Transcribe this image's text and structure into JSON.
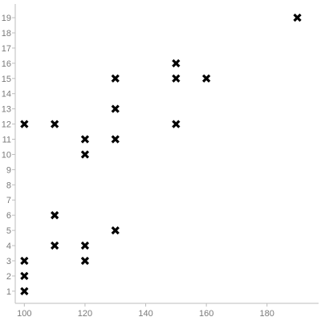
{
  "chart_data": {
    "type": "scatter",
    "title": "",
    "xlabel": "",
    "ylabel": "",
    "xlim": [
      97,
      197
    ],
    "ylim": [
      0.2,
      19.9
    ],
    "x_ticks": [
      100,
      120,
      140,
      160,
      180
    ],
    "y_ticks": [
      1,
      2,
      3,
      4,
      5,
      6,
      7,
      8,
      9,
      10,
      11,
      12,
      13,
      14,
      15,
      16,
      17,
      18,
      19
    ],
    "grid": false,
    "marker": "x",
    "marker_color": "#000000",
    "axis_color": "#bdbdbd",
    "tick_label_color": "#7a7a7a",
    "points": [
      {
        "x": 100,
        "y": 1
      },
      {
        "x": 100,
        "y": 2
      },
      {
        "x": 100,
        "y": 3
      },
      {
        "x": 100,
        "y": 12
      },
      {
        "x": 110,
        "y": 4
      },
      {
        "x": 110,
        "y": 6
      },
      {
        "x": 110,
        "y": 12
      },
      {
        "x": 120,
        "y": 3
      },
      {
        "x": 120,
        "y": 4
      },
      {
        "x": 120,
        "y": 10
      },
      {
        "x": 120,
        "y": 11
      },
      {
        "x": 130,
        "y": 5
      },
      {
        "x": 130,
        "y": 11
      },
      {
        "x": 130,
        "y": 13
      },
      {
        "x": 130,
        "y": 15
      },
      {
        "x": 150,
        "y": 12
      },
      {
        "x": 150,
        "y": 15
      },
      {
        "x": 150,
        "y": 16
      },
      {
        "x": 160,
        "y": 15
      },
      {
        "x": 190,
        "y": 19
      }
    ]
  }
}
